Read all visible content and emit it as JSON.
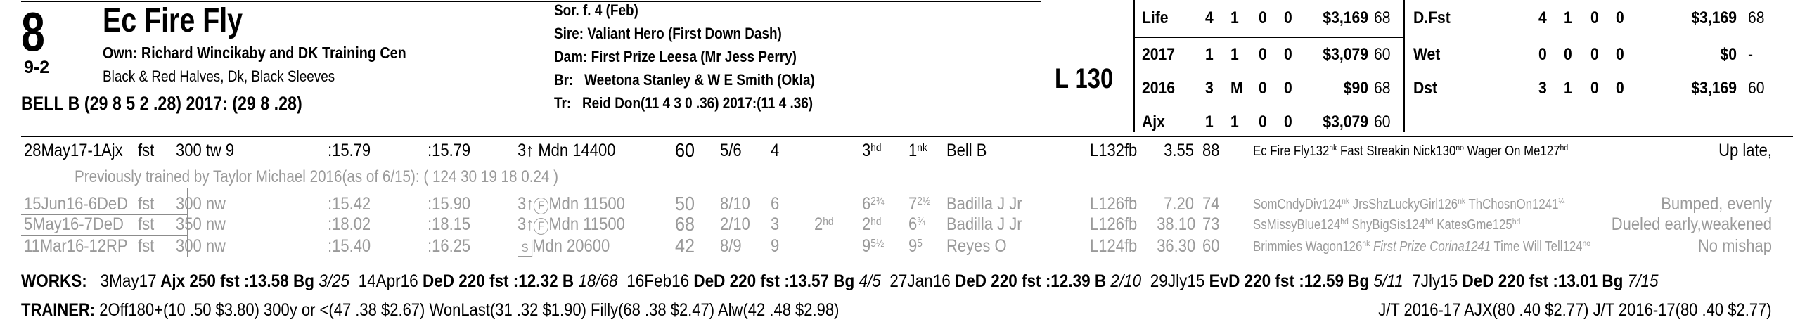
{
  "horse": {
    "program_number": "8",
    "odds": "9-2",
    "name": "Ec Fire Fly",
    "owner": "Own: Richard Wincikaby and DK Training Cen",
    "silks": "Black & Red Halves, Dk, Black Sleeves",
    "jockey": "BELL B (29 8 5 2 .28) 2017: (29 8 .28)"
  },
  "pedigree": {
    "sex_age": "Sor. f. 4 (Feb)",
    "sire_label": "Sire:",
    "sire": "Valiant Hero (First Down Dash)",
    "dam_label": "Dam:",
    "dam": "First Prize Leesa (Mr Jess Perry)",
    "breeder_label": "Br:",
    "breeder": "Weetona Stanley & W E Smith (Okla)",
    "trainer_label": "Tr:",
    "trainer": "Reid Don(11 4 3 0 .36)  2017:(11 4 .36)"
  },
  "weight": "L 130",
  "records": [
    {
      "label": "Life",
      "starts": "4",
      "w": "1",
      "p": "0",
      "s": "0",
      "earn": "$3,169",
      "speed": "68"
    },
    {
      "label": "2017",
      "starts": "1",
      "w": "1",
      "p": "0",
      "s": "0",
      "earn": "$3,079",
      "speed": "60"
    },
    {
      "label": "2016",
      "starts": "3",
      "w": "M",
      "p": "0",
      "s": "0",
      "earn": "$90",
      "speed": "68"
    },
    {
      "label": "Ajx",
      "starts": "1",
      "w": "1",
      "p": "0",
      "s": "0",
      "earn": "$3,079",
      "speed": "60"
    }
  ],
  "surface_records": [
    {
      "label": "D.Fst",
      "starts": "4",
      "w": "1",
      "p": "0",
      "s": "0",
      "earn": "$3,169",
      "speed": "68"
    },
    {
      "label": "Wet",
      "starts": "0",
      "w": "0",
      "p": "0",
      "s": "0",
      "earn": "$0",
      "speed": "-"
    },
    {
      "label": "Dst",
      "starts": "3",
      "w": "1",
      "p": "0",
      "s": "0",
      "earn": "$3,169",
      "speed": "60"
    }
  ],
  "past_performances": [
    {
      "date": "28May17-1Ajx",
      "cond": "fst",
      "dist": "300 tw 9",
      "t1": ":15.79",
      "t2": ":15.79",
      "race": "3↑ Mdn 14400",
      "fig": "60",
      "pp": "5/6",
      "start": "4",
      "c1": "",
      "c2": "3",
      "c2s": "hd",
      "fin": "1",
      "fins": "nk",
      "jockey": "Bell B",
      "wt": "L132fb",
      "odds": "3.55",
      "speed": "88",
      "comment": "Ec Fire Fly132",
      "comment_sup": "nk",
      "comment2": " Fast Streakin Nick130",
      "comment2_sup": "no",
      "comment3": " Wager On Me127",
      "comment3_sup": "hd",
      "remark": "Up late,"
    },
    {
      "date": "15Jun16-6DeD",
      "cond": "fst",
      "dist": "300 nw",
      "t1": ":15.42",
      "t2": ":15.90",
      "race": "3↑",
      "race_icon": "F",
      "race2": "Mdn 11500",
      "fig": "50",
      "pp": "8/10",
      "start": "6",
      "c1": "",
      "c2": "6",
      "c2s": "2¾",
      "fin": "7",
      "fins": "2½",
      "jockey": "Badilla J Jr",
      "wt": "L126fb",
      "odds": "7.20",
      "speed": "74",
      "comment": "SomCndyDiv124",
      "comment_sup": "nk",
      "comment2": " JrsShzLuckyGirl126",
      "comment2_sup": "nk",
      "comment3": " ThChosnOn1241",
      "comment3_sup": "¼",
      "remark": "Bumped, evenly"
    },
    {
      "date": "5May16-7DeD",
      "cond": "fst",
      "dist": "350 nw",
      "t1": ":18.02",
      "t2": ":18.15",
      "race": "3↑",
      "race_icon": "F",
      "race2": "Mdn 11500",
      "fig": "68",
      "pp": "2/10",
      "start": "3",
      "c1": "2",
      "c1s": "hd",
      "c2": "2",
      "c2s": "hd",
      "fin": "6",
      "fins": "¾",
      "jockey": "Badilla J Jr",
      "wt": "L126fb",
      "odds": "38.10",
      "speed": "73",
      "comment": "SsMissyBlue124",
      "comment_sup": "hd",
      "comment2": " ShyBigSis124",
      "comment2_sup": "hd",
      "comment3": " KatesGme125",
      "comment3_sup": "hd",
      "remark": "Dueled early,weakened"
    },
    {
      "date": "11Mar16-12RP",
      "cond": "fst",
      "dist": "300 nw",
      "t1": ":15.40",
      "t2": ":16.25",
      "race": "",
      "race_icon": "S",
      "race2": "Mdn 20600",
      "fig": "42",
      "pp": "8/9",
      "start": "9",
      "c1": "",
      "c2": "9",
      "c2s": "5½",
      "fin": "9",
      "fins": "5",
      "jockey": "Reyes O",
      "wt": "L124fb",
      "odds": "36.30",
      "speed": "60",
      "comment": "Brimmies Wagon126",
      "comment_sup": "nk",
      "comment2": " First Prize Corina1241",
      "comment2_sup": "",
      "comment3": " Time Will Tell124",
      "comment3_sup": "no",
      "remark": "No mishap"
    }
  ],
  "trained_note": "Previously trained by Taylor Michael 2016(as of 6/15): ( 124 30 19 18 0.24 )",
  "works": {
    "label": "WORKS:",
    "entries": [
      {
        "date": "3May17",
        "track": "Ajx",
        "dist": "250 fst",
        "time": ":13.58",
        "grade": "Bg",
        "rank": "3/25"
      },
      {
        "date": "14Apr16",
        "track": "DeD",
        "dist": "220 fst",
        "time": ":12.32",
        "grade": "B",
        "rank": "18/68"
      },
      {
        "date": "16Feb16",
        "track": "DeD",
        "dist": "220 fst",
        "time": ":13.57",
        "grade": "Bg",
        "rank": "4/5"
      },
      {
        "date": "27Jan16",
        "track": "DeD",
        "dist": "220 fst",
        "time": ":12.39",
        "grade": "B",
        "rank": "2/10"
      },
      {
        "date": "29Jly15",
        "track": "EvD",
        "dist": "220 fst",
        "time": ":12.59",
        "grade": "Bg",
        "rank": "5/11"
      },
      {
        "date": "7Jly15",
        "track": "DeD",
        "dist": "220 fst",
        "time": ":13.01",
        "grade": "Bg",
        "rank": "7/15"
      }
    ]
  },
  "trainer_stats": {
    "label": "TRAINER:",
    "text": "2Off180+(10 .50 $3.80) 300y or <(47 .38 $2.67) WonLast(31 .32 $1.90) Filly(68 .38 $2.47) Alw(42 .48 $2.98)",
    "jt": "J/T 2016-17 AJX(80 .40 $2.77)  J/T 2016-17(80 .40 $2.77)"
  }
}
